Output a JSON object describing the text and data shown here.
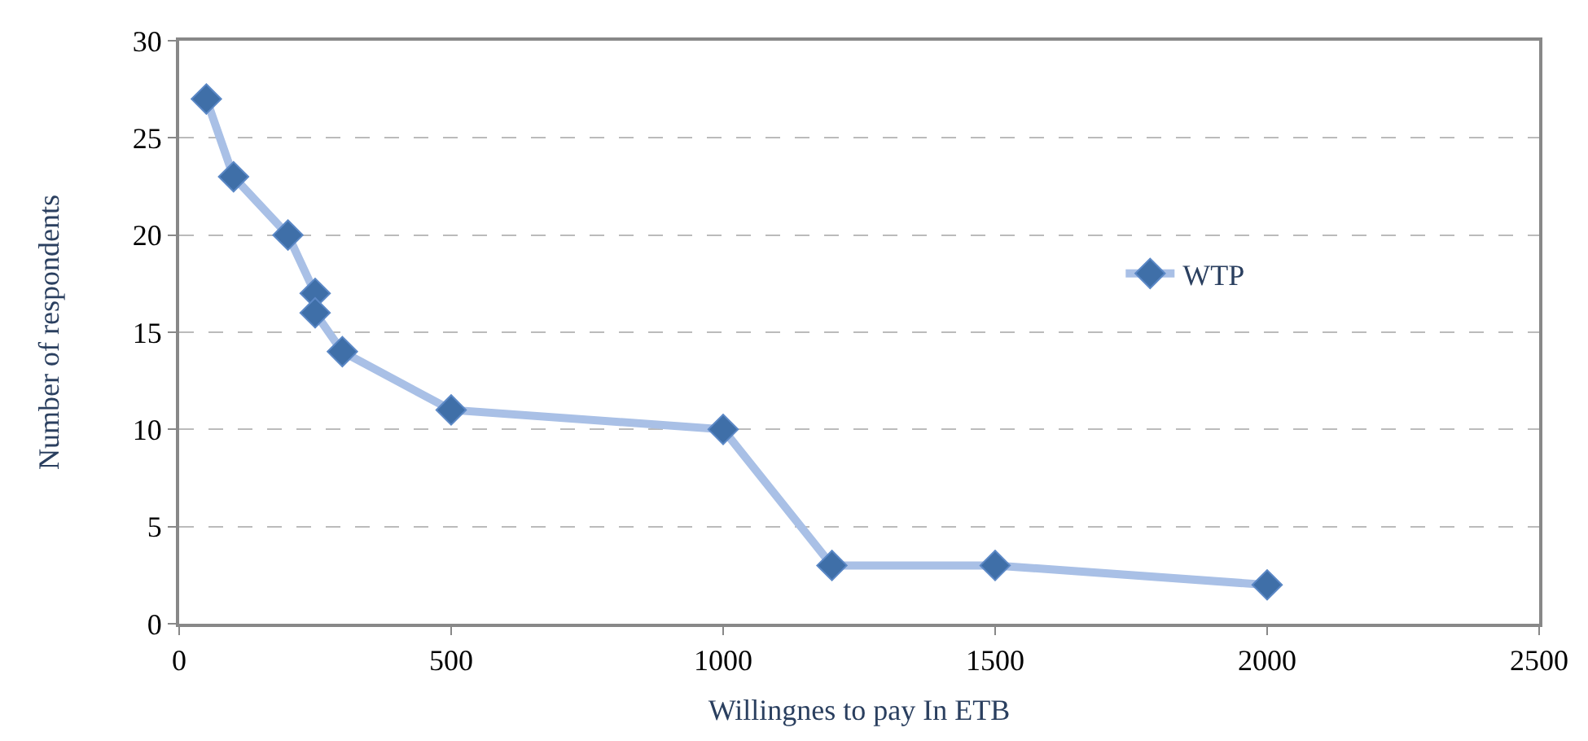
{
  "chart_data": {
    "type": "line",
    "xlabel": "Willingnes to pay In ETB",
    "ylabel": "Number of respondents",
    "x": [
      50,
      100,
      200,
      250,
      250,
      300,
      500,
      1000,
      1200,
      1500,
      2000
    ],
    "series": [
      {
        "name": "WTP",
        "color": "#3f6fa8",
        "values": [
          27,
          23,
          20,
          17,
          16,
          14,
          11,
          10,
          3,
          3,
          2
        ]
      }
    ],
    "xlim": [
      0,
      2500
    ],
    "xticks": [
      0,
      500,
      1000,
      1500,
      2000,
      2500
    ],
    "ylim": [
      0,
      30
    ],
    "yticks": [
      0,
      5,
      10,
      15,
      20,
      25,
      30
    ],
    "grid": "y",
    "legend": "right",
    "marker": "diamond",
    "line_style": "solid"
  }
}
